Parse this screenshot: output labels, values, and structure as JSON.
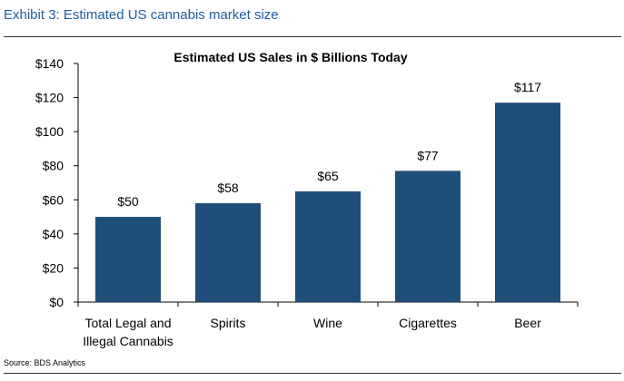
{
  "exhibit": {
    "title": "Exhibit 3: Estimated US cannabis market size",
    "source": "Source: BDS Analytics"
  },
  "colors": {
    "bar": "#1f4e79",
    "axis": "#000000",
    "accent": "#1f5d9c"
  },
  "chart_data": {
    "type": "bar",
    "title": "Estimated US Sales in $ Billions Today",
    "xlabel": "",
    "ylabel": "",
    "ylim": [
      0,
      140
    ],
    "yticks": [
      0,
      20,
      40,
      60,
      80,
      100,
      120,
      140
    ],
    "ytick_labels": [
      "$0",
      "$20",
      "$40",
      "$60",
      "$80",
      "$100",
      "$120",
      "$140"
    ],
    "categories": [
      [
        "Total Legal and",
        "Illegal Cannabis"
      ],
      [
        "Spirits"
      ],
      [
        "Wine"
      ],
      [
        "Cigarettes"
      ],
      [
        "Beer"
      ]
    ],
    "values": [
      50,
      58,
      65,
      77,
      117
    ],
    "data_labels": [
      "$50",
      "$58",
      "$65",
      "$77",
      "$117"
    ],
    "grid": false,
    "legend": "none"
  }
}
